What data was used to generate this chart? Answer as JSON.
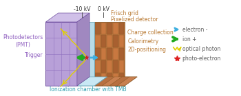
{
  "bg_color": "#ffffff",
  "label_pmt": "Photodetectors\n(PMT)",
  "label_trigger": "Trigger",
  "label_frisch": "Frisch grid",
  "label_pixelized": "Pixelized detector",
  "label_charge": "Charge collection\nCalorimetry\n2D-positioning",
  "label_ionization": "Ionization chamber with TMB",
  "label_neg10kv": "-10 kV",
  "label_0kv": "0 kV",
  "legend_photo_electron": "photo-electron",
  "legend_optical_photon": "optical photon",
  "legend_ion": "ion +",
  "legend_electron": "electron -",
  "text_color_purple": "#9060c0",
  "text_color_orange": "#b87830",
  "text_color_teal": "#30a0b0",
  "text_color_dark": "#606060",
  "purple_face": "#b8a0d8",
  "purple_top": "#d0c0e8",
  "purple_side": "#a088c0",
  "mid_face": "#b8dce8",
  "mid_top": "#c8e8f4",
  "mid_side": "#90c0d0",
  "brown_face": "#c07840",
  "brown_dark": "#8b5a28",
  "brown_top": "#d09060"
}
